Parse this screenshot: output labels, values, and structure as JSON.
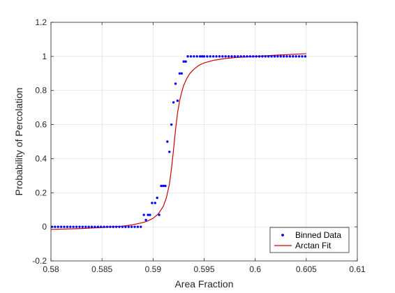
{
  "chart_data": {
    "type": "scatter",
    "title": "",
    "xlabel": "Area Fraction",
    "ylabel": "Probability of Percolation",
    "xlim": [
      0.58,
      0.61
    ],
    "ylim": [
      -0.2,
      1.2
    ],
    "x_ticks": [
      "0.58",
      "0.585",
      "0.59",
      "0.595",
      "0.6",
      "0.605",
      "0.61"
    ],
    "y_ticks": [
      "-0.2",
      "0",
      "0.2",
      "0.4",
      "0.6",
      "0.8",
      "1",
      "1.2"
    ],
    "grid": true,
    "legend_position": "bottom-right",
    "series": [
      {
        "name": "Binned Data",
        "kind": "points",
        "color": "#0000ff",
        "x": [
          0.5801,
          0.5804,
          0.5807,
          0.581,
          0.5813,
          0.5816,
          0.5819,
          0.5822,
          0.5825,
          0.5828,
          0.5831,
          0.5834,
          0.5837,
          0.584,
          0.5843,
          0.5846,
          0.5849,
          0.5852,
          0.5855,
          0.5858,
          0.5861,
          0.5864,
          0.5867,
          0.587,
          0.5873,
          0.5876,
          0.5879,
          0.5882,
          0.5885,
          0.5888,
          0.5891,
          0.5893,
          0.5895,
          0.5897,
          0.5899,
          0.5902,
          0.5904,
          0.5906,
          0.5908,
          0.591,
          0.5912,
          0.5914,
          0.5916,
          0.5918,
          0.592,
          0.5922,
          0.5924,
          0.5926,
          0.5928,
          0.593,
          0.5932,
          0.5934,
          0.5937,
          0.594,
          0.5943,
          0.5946,
          0.5948,
          0.595,
          0.5953,
          0.5956,
          0.5959,
          0.5962,
          0.5965,
          0.5968,
          0.5971,
          0.5974,
          0.5977,
          0.598,
          0.5983,
          0.5986,
          0.5989,
          0.5992,
          0.5995,
          0.5998,
          0.6001,
          0.6004,
          0.6007,
          0.601,
          0.6013,
          0.6016,
          0.6019,
          0.6022,
          0.6025,
          0.6028,
          0.6031,
          0.6034,
          0.6037,
          0.604,
          0.6043,
          0.6046,
          0.6049
        ],
        "y": [
          0,
          0,
          0,
          0,
          0,
          0,
          0,
          0,
          0,
          0,
          0,
          0,
          0,
          0,
          0,
          0,
          0,
          0,
          0,
          0,
          0,
          0,
          0,
          0,
          0,
          0,
          0,
          0,
          0,
          0,
          0.07,
          0.04,
          0.07,
          0.07,
          0.14,
          0.14,
          0.17,
          0.07,
          0.24,
          0.24,
          0.24,
          0.5,
          0.44,
          0.6,
          0.73,
          0.84,
          0.74,
          0.9,
          0.9,
          0.97,
          0.97,
          1,
          1,
          1,
          1,
          1,
          1,
          1,
          1,
          1,
          1,
          1,
          1,
          1,
          1,
          1,
          1,
          1,
          1,
          1,
          1,
          1,
          1,
          1,
          1,
          1,
          1,
          1,
          1,
          1,
          1,
          1,
          1,
          1,
          1,
          1,
          1,
          1,
          1,
          1,
          1
        ]
      },
      {
        "name": "Arctan Fit",
        "kind": "line",
        "color": "#cc0000",
        "x": [
          0.58,
          0.583,
          0.585,
          0.587,
          0.588,
          0.589,
          0.5895,
          0.59,
          0.5905,
          0.591,
          0.5913,
          0.5916,
          0.5918,
          0.592,
          0.5922,
          0.5924,
          0.5926,
          0.5928,
          0.593,
          0.5933,
          0.5936,
          0.594,
          0.5945,
          0.595,
          0.596,
          0.597,
          0.598,
          0.6,
          0.602,
          0.604,
          0.605
        ],
        "y": [
          -0.015,
          -0.01,
          -0.004,
          0.004,
          0.012,
          0.025,
          0.035,
          0.05,
          0.075,
          0.12,
          0.17,
          0.25,
          0.34,
          0.45,
          0.57,
          0.67,
          0.74,
          0.79,
          0.83,
          0.87,
          0.9,
          0.925,
          0.948,
          0.962,
          0.978,
          0.987,
          0.993,
          1.0,
          1.007,
          1.013,
          1.016
        ]
      }
    ]
  }
}
